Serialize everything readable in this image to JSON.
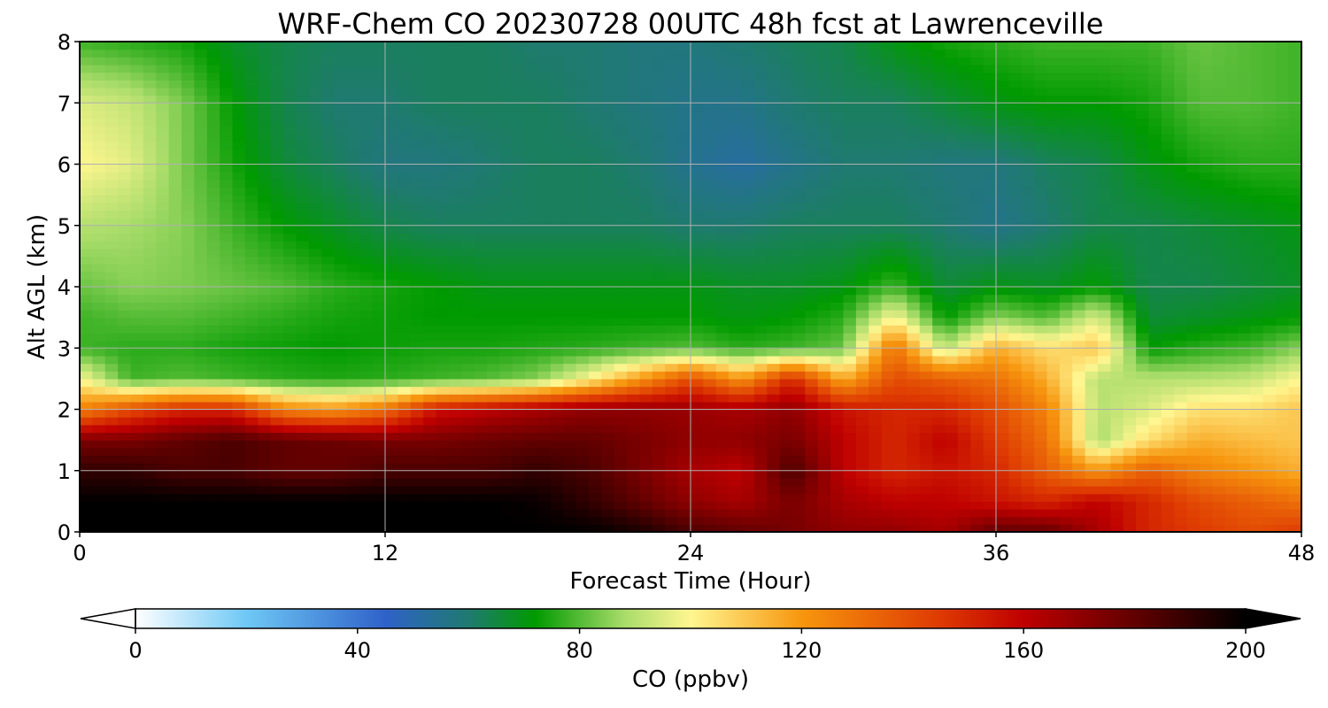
{
  "chart_data": {
    "type": "heatmap",
    "title": "WRF-Chem CO  20230728 00UTC 48h fcst at Lawrenceville",
    "xlabel": "Forecast Time (Hour)",
    "ylabel": "Alt AGL (km)",
    "xlim": [
      0,
      48
    ],
    "ylim": [
      0,
      8
    ],
    "x_ticks": [
      0,
      12,
      24,
      36,
      48
    ],
    "y_ticks": [
      0,
      1,
      2,
      3,
      4,
      5,
      6,
      7,
      8
    ],
    "grid": true,
    "x": [
      0,
      2,
      4,
      6,
      8,
      10,
      12,
      14,
      16,
      18,
      20,
      22,
      24,
      26,
      28,
      30,
      32,
      34,
      36,
      38,
      40,
      42,
      44,
      46,
      48
    ],
    "y": [
      0,
      0.5,
      1,
      1.5,
      2,
      2.5,
      3,
      3.5,
      4,
      5,
      6,
      7,
      8
    ],
    "z": [
      [
        200,
        200,
        200,
        200,
        200,
        200,
        200,
        200,
        200,
        200,
        200,
        195,
        185,
        180,
        175,
        170,
        170,
        165,
        180,
        180,
        165,
        150,
        145,
        140,
        145
      ],
      [
        200,
        200,
        200,
        200,
        200,
        200,
        200,
        200,
        200,
        198,
        190,
        180,
        170,
        165,
        175,
        165,
        160,
        160,
        155,
        150,
        160,
        150,
        140,
        135,
        130
      ],
      [
        190,
        190,
        185,
        185,
        180,
        180,
        185,
        185,
        185,
        190,
        185,
        175,
        165,
        160,
        185,
        160,
        150,
        155,
        150,
        135,
        120,
        135,
        125,
        120,
        115
      ],
      [
        175,
        175,
        180,
        185,
        180,
        178,
        175,
        175,
        178,
        180,
        180,
        175,
        170,
        170,
        175,
        160,
        150,
        160,
        145,
        130,
        88,
        105,
        115,
        112,
        110
      ],
      [
        125,
        140,
        150,
        150,
        125,
        120,
        130,
        155,
        160,
        165,
        170,
        170,
        168,
        165,
        170,
        155,
        150,
        150,
        140,
        125,
        90,
        95,
        105,
        105,
        110
      ],
      [
        100,
        78,
        80,
        78,
        76,
        75,
        76,
        78,
        80,
        85,
        100,
        120,
        140,
        120,
        150,
        115,
        140,
        135,
        130,
        115,
        90,
        90,
        90,
        92,
        100
      ],
      [
        78,
        76,
        76,
        74,
        73,
        72,
        73,
        74,
        74,
        75,
        76,
        78,
        80,
        76,
        78,
        82,
        130,
        90,
        115,
        105,
        110,
        72,
        76,
        78,
        85
      ],
      [
        78,
        80,
        80,
        78,
        76,
        74,
        73,
        72,
        72,
        72,
        72,
        72,
        72,
        70,
        72,
        76,
        100,
        72,
        85,
        80,
        95,
        66,
        68,
        70,
        72
      ],
      [
        82,
        85,
        84,
        82,
        80,
        76,
        74,
        72,
        70,
        70,
        70,
        70,
        70,
        68,
        68,
        70,
        78,
        66,
        70,
        68,
        72,
        64,
        64,
        66,
        68
      ],
      [
        90,
        88,
        85,
        78,
        72,
        68,
        64,
        62,
        62,
        62,
        62,
        62,
        60,
        60,
        62,
        62,
        62,
        60,
        56,
        60,
        64,
        64,
        66,
        68,
        70
      ],
      [
        100,
        96,
        84,
        74,
        66,
        62,
        58,
        58,
        60,
        62,
        62,
        60,
        55,
        52,
        56,
        60,
        60,
        58,
        58,
        62,
        64,
        70,
        74,
        76,
        76
      ],
      [
        95,
        92,
        84,
        72,
        64,
        60,
        60,
        62,
        62,
        62,
        60,
        58,
        56,
        56,
        60,
        62,
        62,
        66,
        70,
        72,
        72,
        74,
        80,
        80,
        78
      ],
      [
        78,
        76,
        74,
        68,
        64,
        62,
        62,
        62,
        62,
        60,
        60,
        58,
        58,
        60,
        62,
        64,
        70,
        74,
        76,
        78,
        78,
        78,
        82,
        80,
        78
      ]
    ],
    "colorbar": {
      "label": "CO  (ppbv)",
      "min": 0,
      "max": 200,
      "ticks": [
        0,
        40,
        80,
        120,
        160,
        200
      ],
      "extend": "both",
      "stops": [
        {
          "value": 0,
          "color": "#ffffff"
        },
        {
          "value": 20,
          "color": "#6ec8f5"
        },
        {
          "value": 45,
          "color": "#2f62c9"
        },
        {
          "value": 60,
          "color": "#1f7a70"
        },
        {
          "value": 72,
          "color": "#009a00"
        },
        {
          "value": 88,
          "color": "#a8dc6a"
        },
        {
          "value": 100,
          "color": "#fff690"
        },
        {
          "value": 120,
          "color": "#f7960e"
        },
        {
          "value": 145,
          "color": "#de3a02"
        },
        {
          "value": 160,
          "color": "#bf0000"
        },
        {
          "value": 185,
          "color": "#4a0000"
        },
        {
          "value": 200,
          "color": "#000000"
        }
      ]
    }
  }
}
